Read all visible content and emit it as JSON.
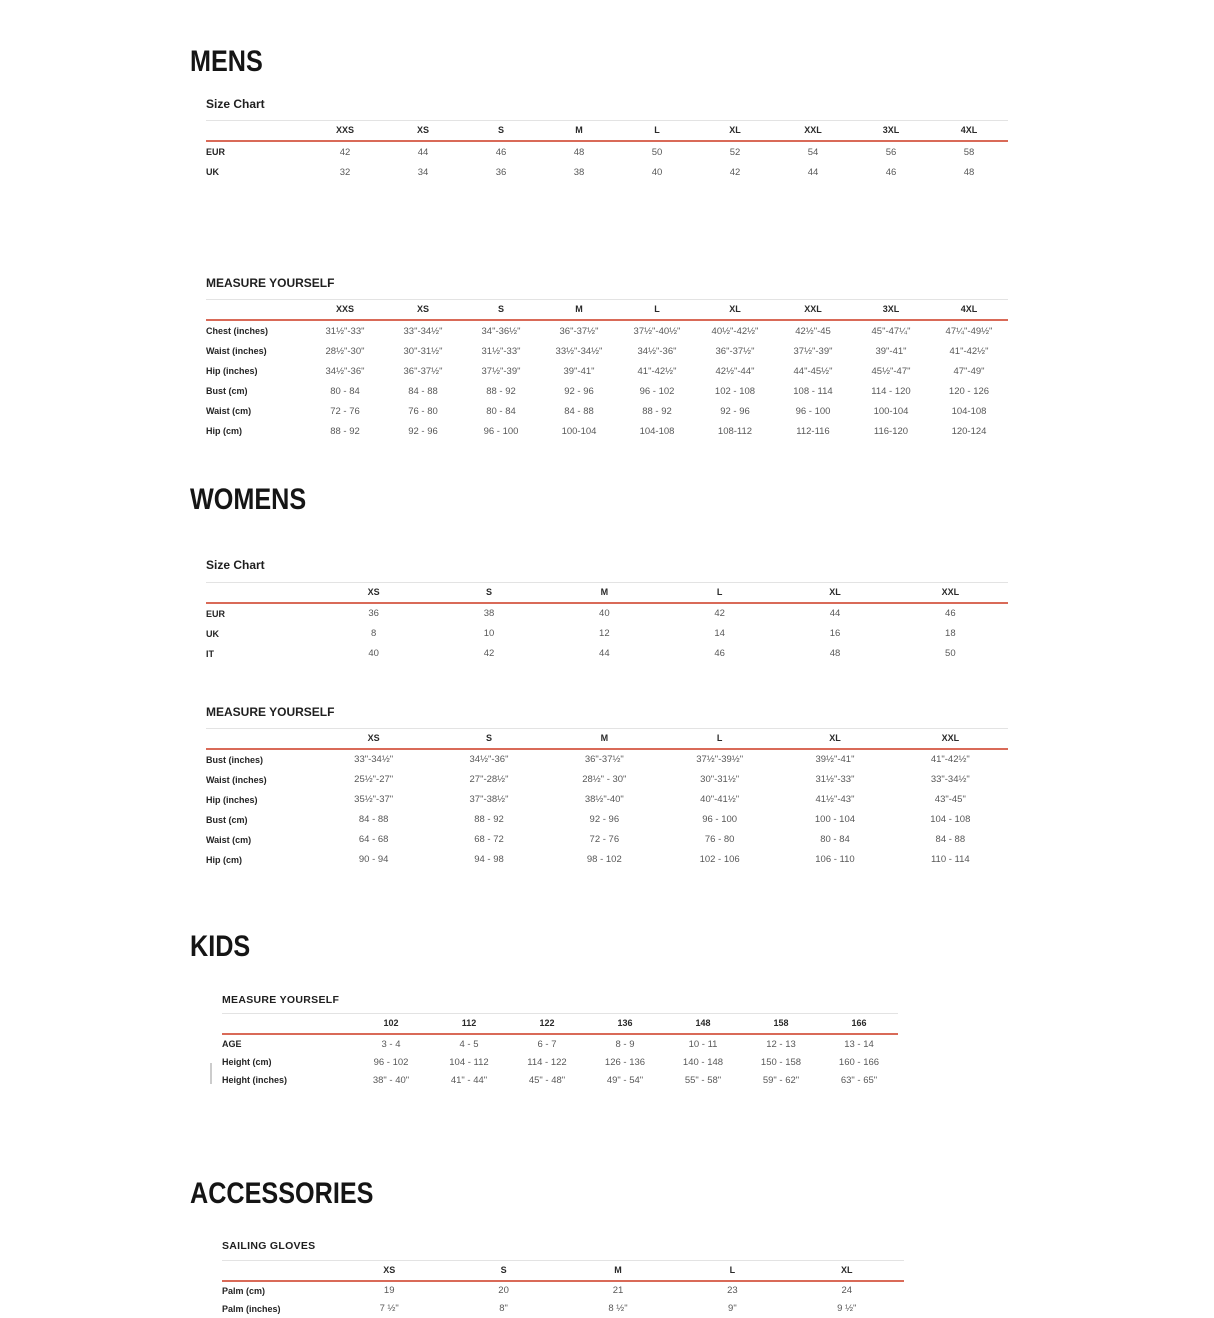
{
  "page": {
    "background": "#ffffff",
    "accent_line_color": "#d96a58",
    "top_rule_color": "#e3e3e3"
  },
  "sections": [
    {
      "id": "mens",
      "heading": "MENS",
      "tables": [
        {
          "title": "Size Chart",
          "columns": [
            "XXS",
            "XS",
            "S",
            "M",
            "L",
            "XL",
            "XXL",
            "3XL",
            "4XL"
          ],
          "rows": [
            {
              "label": "EUR",
              "values": [
                "42",
                "44",
                "46",
                "48",
                "50",
                "52",
                "54",
                "56",
                "58"
              ]
            },
            {
              "label": "UK",
              "values": [
                "32",
                "34",
                "36",
                "38",
                "40",
                "42",
                "44",
                "46",
                "48"
              ]
            }
          ]
        },
        {
          "title": "MEASURE YOURSELF",
          "columns": [
            "XXS",
            "XS",
            "S",
            "M",
            "L",
            "XL",
            "XXL",
            "3XL",
            "4XL"
          ],
          "rows": [
            {
              "label": "Chest (inches)",
              "values": [
                "31½\"-33\"",
                "33\"-34½\"",
                "34\"-36½\"",
                "36\"-37½\"",
                "37½\"-40½\"",
                "40½\"-42½\"",
                "42½\"-45",
                "45\"-47¼\"",
                "47¼\"-49½\""
              ]
            },
            {
              "label": "Waist (inches)",
              "values": [
                "28½\"-30\"",
                "30\"-31½\"",
                "31½\"-33\"",
                "33½\"-34½\"",
                "34½\"-36\"",
                "36\"-37½\"",
                "37½\"-39\"",
                "39\"-41\"",
                "41\"-42½\""
              ]
            },
            {
              "label": "Hip (inches)",
              "values": [
                "34½\"-36\"",
                "36\"-37½\"",
                "37½\"-39\"",
                "39\"-41\"",
                "41\"-42½\"",
                "42½\"-44\"",
                "44\"-45½\"",
                "45½\"-47\"",
                "47\"-49\""
              ]
            },
            {
              "label": "Bust (cm)",
              "values": [
                "80 - 84",
                "84 - 88",
                "88 - 92",
                "92 - 96",
                "96 - 102",
                "102 - 108",
                "108 - 114",
                "114 - 120",
                "120 - 126"
              ]
            },
            {
              "label": "Waist (cm)",
              "values": [
                "72 - 76",
                "76 - 80",
                "80 - 84",
                "84 - 88",
                "88 - 92",
                "92 - 96",
                "96 - 100",
                "100-104",
                "104-108"
              ]
            },
            {
              "label": "Hip (cm)",
              "values": [
                "88 - 92",
                "92 - 96",
                "96 - 100",
                "100-104",
                "104-108",
                "108-112",
                "112-116",
                "116-120",
                "120-124"
              ]
            }
          ]
        }
      ]
    },
    {
      "id": "womens",
      "heading": "WOMENS",
      "tables": [
        {
          "title": "Size Chart",
          "columns": [
            "XS",
            "S",
            "M",
            "L",
            "XL",
            "XXL"
          ],
          "rows": [
            {
              "label": "EUR",
              "values": [
                "36",
                "38",
                "40",
                "42",
                "44",
                "46"
              ]
            },
            {
              "label": "UK",
              "values": [
                "8",
                "10",
                "12",
                "14",
                "16",
                "18"
              ]
            },
            {
              "label": "IT",
              "values": [
                "40",
                "42",
                "44",
                "46",
                "48",
                "50"
              ]
            }
          ]
        },
        {
          "title": "MEASURE YOURSELF",
          "columns": [
            "XS",
            "S",
            "M",
            "L",
            "XL",
            "XXL"
          ],
          "rows": [
            {
              "label": "Bust (inches)",
              "values": [
                "33\"-34½\"",
                "34½\"-36\"",
                "36\"-37½\"",
                "37½\"-39½\"",
                "39½\"-41\"",
                "41\"-42½\""
              ]
            },
            {
              "label": "Waist (inches)",
              "values": [
                "25½\"-27\"",
                "27\"-28½\"",
                "28½\" - 30\"",
                "30\"-31½\"",
                "31½\"-33\"",
                "33\"-34½\""
              ]
            },
            {
              "label": "Hip (inches)",
              "values": [
                "35½\"-37\"",
                "37\"-38½\"",
                "38½\"-40\"",
                "40\"-41½\"",
                "41½\"-43\"",
                "43\"-45\""
              ]
            },
            {
              "label": "Bust (cm)",
              "values": [
                "84 - 88",
                "88 - 92",
                "92 - 96",
                "96 - 100",
                "100 - 104",
                "104 - 108"
              ]
            },
            {
              "label": "Waist (cm)",
              "values": [
                "64 - 68",
                "68 - 72",
                "72 - 76",
                "76 - 80",
                "80 - 84",
                "84 - 88"
              ]
            },
            {
              "label": "Hip (cm)",
              "values": [
                "90 - 94",
                "94 - 98",
                "98 - 102",
                "102 - 106",
                "106 - 110",
                "110 - 114"
              ]
            }
          ]
        }
      ]
    },
    {
      "id": "kids",
      "heading": "KIDS",
      "tables": [
        {
          "title": "MEASURE YOURSELF",
          "columns": [
            "102",
            "112",
            "122",
            "136",
            "148",
            "158",
            "166"
          ],
          "rows": [
            {
              "label": "AGE",
              "values": [
                "3 - 4",
                "4 - 5",
                "6 - 7",
                "8 - 9",
                "10 - 11",
                "12 - 13",
                "13 - 14"
              ]
            },
            {
              "label": "Height (cm)",
              "values": [
                "96 - 102",
                "104 - 112",
                "114 - 122",
                "126 - 136",
                "140 - 148",
                "150 - 158",
                "160 - 166"
              ]
            },
            {
              "label": "Height (inches)",
              "values": [
                "38\" - 40\"",
                "41\" - 44\"",
                "45\" - 48\"",
                "49\" - 54\"",
                "55\" - 58\"",
                "59\" - 62\"",
                "63\" - 65\""
              ]
            }
          ]
        }
      ]
    },
    {
      "id": "accessories",
      "heading": "ACCESSORIES",
      "tables": [
        {
          "title": "SAILING GLOVES",
          "columns": [
            "XS",
            "S",
            "M",
            "L",
            "XL"
          ],
          "rows": [
            {
              "label": "Palm (cm)",
              "values": [
                "19",
                "20",
                "21",
                "23",
                "24"
              ]
            },
            {
              "label": "Palm (inches)",
              "values": [
                "7 ½\"",
                "8\"",
                "8 ½\"",
                "9\"",
                "9 ½\""
              ]
            }
          ]
        }
      ]
    }
  ]
}
